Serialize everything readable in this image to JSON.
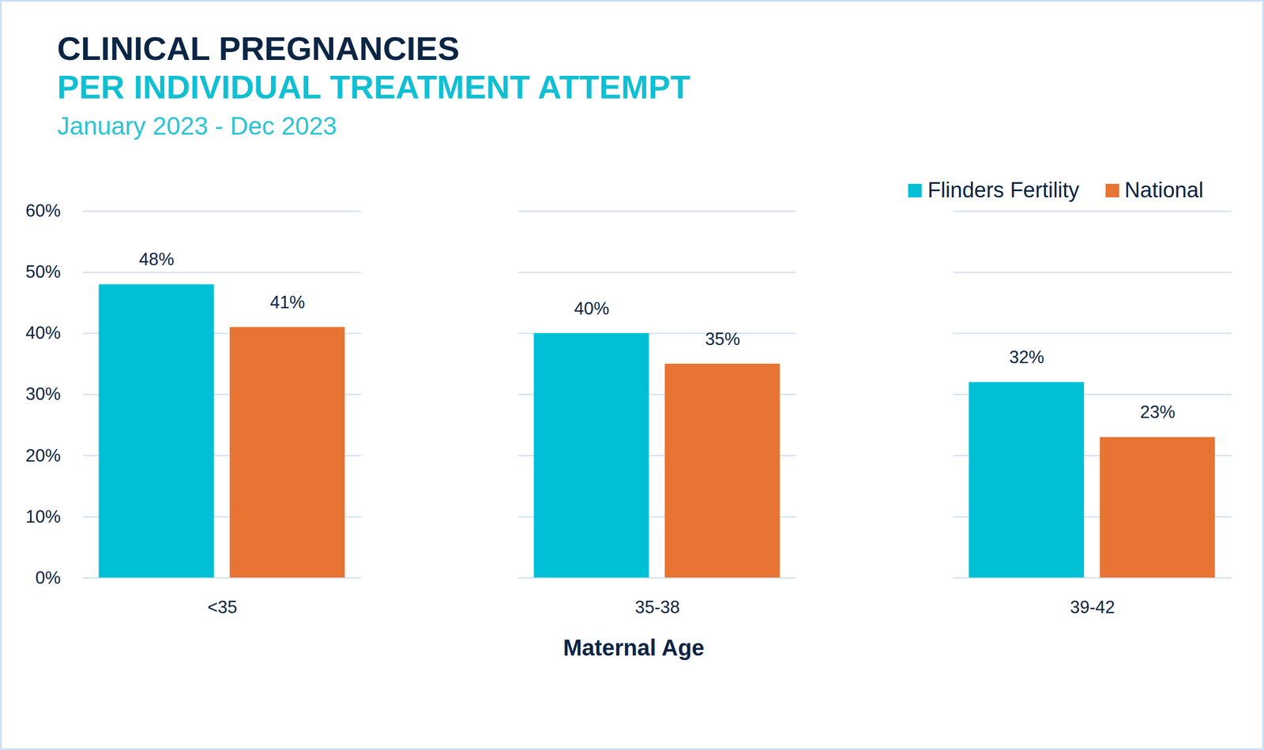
{
  "chart_data": {
    "type": "bar",
    "title": "CLINICAL PREGNANCIES",
    "subtitle": "PER INDIVIDUAL TREATMENT ATTEMPT",
    "period": "January 2023 - Dec 2023",
    "x_label": "Maternal Age",
    "categories": [
      "<35",
      "35-38",
      "39-42"
    ],
    "series": [
      {
        "name": "Flinders Fertility",
        "color": "#00c0d6",
        "values": [
          48,
          40,
          32
        ],
        "value_labels": [
          "48%",
          "40%",
          "32%"
        ]
      },
      {
        "name": "National",
        "color": "#e87433",
        "values": [
          41,
          35,
          23
        ],
        "value_labels": [
          "41%",
          "35%",
          "23%"
        ]
      }
    ],
    "ylim": [
      0,
      60
    ],
    "yticks": [
      {
        "value": 0,
        "label": "0%"
      },
      {
        "value": 10,
        "label": "10%"
      },
      {
        "value": 20,
        "label": "20%"
      },
      {
        "value": 30,
        "label": "30%"
      },
      {
        "value": 40,
        "label": "40%"
      },
      {
        "value": 50,
        "label": "50%"
      },
      {
        "value": 60,
        "label": "60%"
      }
    ],
    "grid": true,
    "legend": "top-right",
    "data_labels": true
  }
}
